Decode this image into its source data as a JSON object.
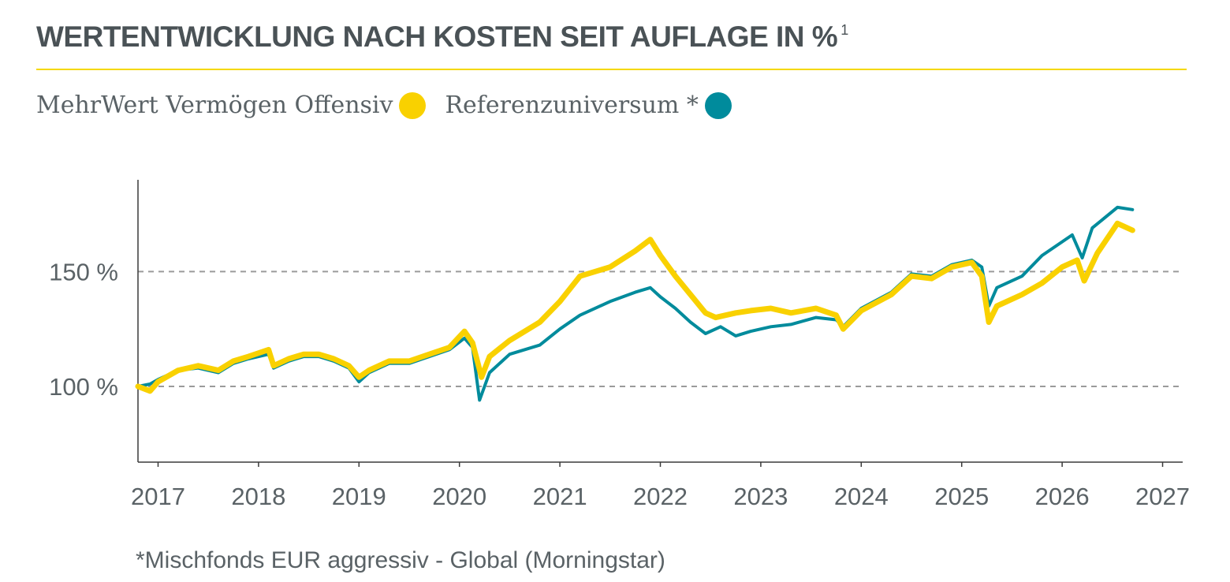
{
  "title": "WERTENTWICKLUNG NACH KOSTEN SEIT AUFLAGE IN %",
  "title_superscript": "1",
  "colors": {
    "accent": "#f5d800",
    "fund": "#f9d100",
    "benchmark": "#008b9c",
    "text": "#4a5256",
    "grid": "#9a9a9a"
  },
  "legend": {
    "fund_label": "MehrWert Vermögen Offensiv",
    "benchmark_label": "Referenzuniversum *"
  },
  "footnote": "*Mischfonds EUR aggressiv - Global (Morningstar)",
  "chart_data": {
    "type": "line",
    "title": "",
    "xlabel": "",
    "ylabel": "",
    "xlim": [
      2016.8,
      2027.2
    ],
    "ylim": [
      67,
      190
    ],
    "x_ticks": [
      2017,
      2018,
      2019,
      2020,
      2021,
      2022,
      2023,
      2024,
      2025,
      2026,
      2027
    ],
    "x_tick_labels": [
      "2017",
      "2018",
      "2019",
      "2020",
      "2021",
      "2022",
      "2023",
      "2024",
      "2025",
      "2026",
      "2027"
    ],
    "y_ticks": [
      100,
      150
    ],
    "y_tick_labels": [
      "100 %",
      "150 %"
    ],
    "grid": "horizontal dashed at labeled ticks",
    "legend_position": "top-left",
    "series": [
      {
        "name": "MehrWert Vermögen Offensiv",
        "color": "#f9d100",
        "x": [
          2016.8,
          2016.92,
          2017.0,
          2017.2,
          2017.4,
          2017.6,
          2017.75,
          2017.9,
          2018.1,
          2018.15,
          2018.3,
          2018.45,
          2018.6,
          2018.75,
          2018.9,
          2019.0,
          2019.1,
          2019.3,
          2019.5,
          2019.7,
          2019.9,
          2020.05,
          2020.13,
          2020.22,
          2020.3,
          2020.5,
          2020.8,
          2021.0,
          2021.2,
          2021.5,
          2021.75,
          2021.9,
          2022.0,
          2022.15,
          2022.3,
          2022.45,
          2022.55,
          2022.75,
          2022.9,
          2023.1,
          2023.3,
          2023.55,
          2023.75,
          2023.82,
          2024.0,
          2024.3,
          2024.5,
          2024.7,
          2024.9,
          2025.1,
          2025.2,
          2025.27,
          2025.35,
          2025.6,
          2025.8,
          2026.0,
          2026.15,
          2026.22,
          2026.35,
          2026.55,
          2026.7
        ],
        "y": [
          100,
          98,
          102,
          107,
          109,
          107,
          111,
          113,
          116,
          109,
          112,
          114,
          114,
          112,
          109,
          104,
          107,
          111,
          111,
          114,
          117,
          124,
          119,
          104,
          113,
          120,
          128,
          137,
          148,
          152,
          159,
          164,
          157,
          148,
          140,
          132,
          130,
          132,
          133,
          134,
          132,
          134,
          131,
          125,
          133,
          140,
          148,
          147,
          152,
          154,
          148,
          128,
          135,
          140,
          145,
          152,
          155,
          146,
          158,
          171,
          168
        ]
      },
      {
        "name": "Referenzuniversum *",
        "color": "#008b9c",
        "x": [
          2016.8,
          2016.92,
          2017.0,
          2017.2,
          2017.4,
          2017.6,
          2017.75,
          2017.9,
          2018.1,
          2018.15,
          2018.3,
          2018.45,
          2018.6,
          2018.75,
          2018.9,
          2019.0,
          2019.1,
          2019.3,
          2019.5,
          2019.7,
          2019.9,
          2020.05,
          2020.13,
          2020.2,
          2020.3,
          2020.5,
          2020.8,
          2021.0,
          2021.2,
          2021.5,
          2021.75,
          2021.9,
          2022.0,
          2022.15,
          2022.3,
          2022.45,
          2022.6,
          2022.75,
          2022.9,
          2023.1,
          2023.3,
          2023.55,
          2023.75,
          2023.82,
          2024.0,
          2024.3,
          2024.5,
          2024.7,
          2024.9,
          2025.1,
          2025.2,
          2025.27,
          2025.35,
          2025.6,
          2025.8,
          2026.0,
          2026.1,
          2026.2,
          2026.3,
          2026.55,
          2026.7
        ],
        "y": [
          100,
          101,
          103,
          107,
          108,
          106,
          110,
          112,
          114,
          108,
          111,
          113,
          113,
          111,
          108,
          102,
          106,
          110,
          110,
          113,
          116,
          121,
          117,
          94,
          106,
          114,
          118,
          125,
          131,
          137,
          141,
          143,
          139,
          134,
          128,
          123,
          126,
          122,
          124,
          126,
          127,
          130,
          129,
          126,
          134,
          141,
          149,
          148,
          153,
          155,
          152,
          135,
          143,
          148,
          157,
          163,
          166,
          156,
          169,
          178,
          177
        ]
      }
    ]
  }
}
